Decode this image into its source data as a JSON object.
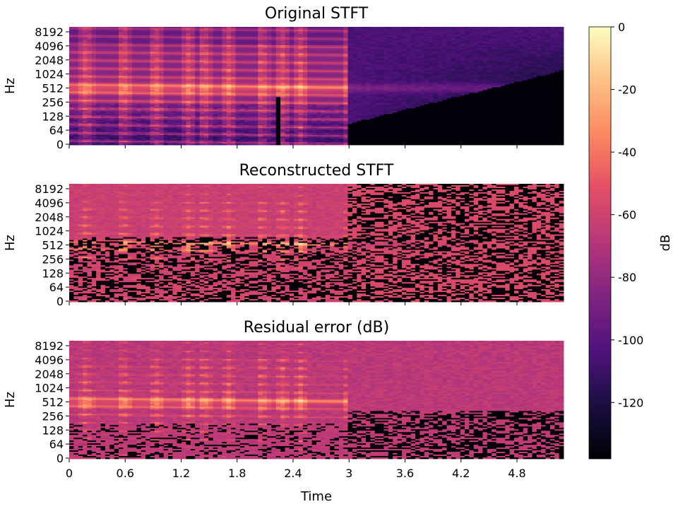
{
  "chart_data": {
    "type": "heatmap",
    "colormap": "magma",
    "panels": [
      {
        "id": "original",
        "title": "Original STFT",
        "ylabel": "Hz"
      },
      {
        "id": "reconstructed",
        "title": "Reconstructed STFT",
        "ylabel": "Hz"
      },
      {
        "id": "residual",
        "title": "Residual error (dB)",
        "ylabel": "Hz"
      }
    ],
    "y_scale": "symlog",
    "y_ticks": [
      "0",
      "64",
      "128",
      "256",
      "512",
      "1024",
      "2048",
      "4096",
      "8192"
    ],
    "xlabel": "Time",
    "x_ticks": [
      0,
      0.6,
      1.2,
      1.8,
      2.4,
      3,
      3.6,
      4.2,
      4.8
    ],
    "x_tick_labels": [
      "0",
      "0.6",
      "1.2",
      "1.8",
      "2.4",
      "3",
      "3.6",
      "4.2",
      "4.8"
    ],
    "x_range": [
      0,
      5.3
    ],
    "colorbar": {
      "label": "dB",
      "range": [
        -138,
        0
      ],
      "ticks": [
        0,
        -20,
        -40,
        -60,
        -80,
        -100,
        -120
      ],
      "tick_labels": [
        "0",
        "-20",
        "-40",
        "-60",
        "-80",
        "-100",
        "-120"
      ]
    },
    "features": {
      "harmonic_onsets_s": [
        0.15,
        0.55,
        0.9,
        1.25,
        1.42,
        1.68,
        2.03,
        2.25,
        2.45,
        2.98
      ],
      "sound_end_s": 3.0,
      "tonal_band_hz": 512,
      "tonal_band_end_s": 4.9
    }
  }
}
